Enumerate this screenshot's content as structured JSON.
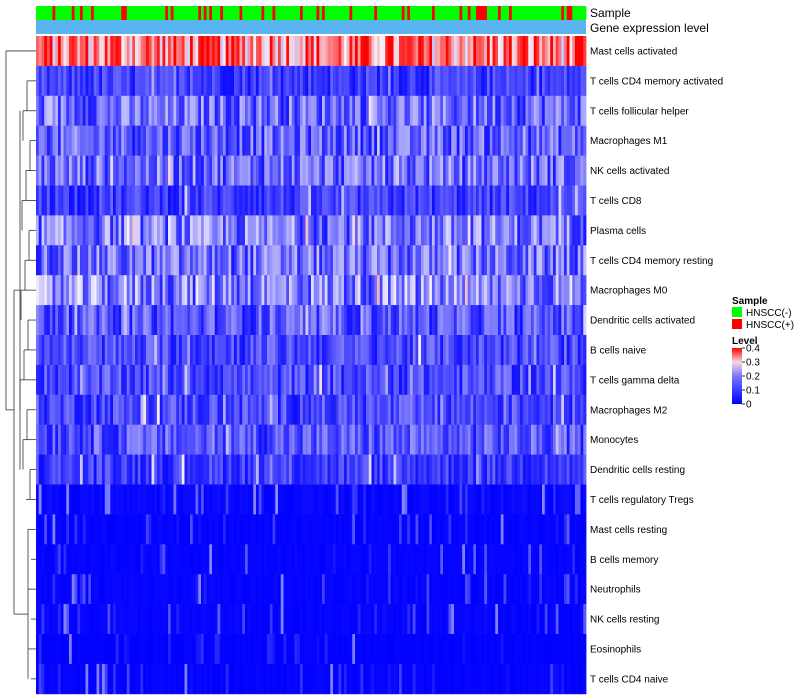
{
  "chart_data": {
    "type": "heatmap",
    "title": "",
    "annotation_rows": [
      "Sample",
      "Gene expression level"
    ],
    "rows": [
      "Mast cells activated",
      "T cells CD4 memory activated",
      "T cells follicular helper",
      "Macrophages M1",
      "NK cells activated",
      "T cells CD8",
      "Plasma cells",
      "T cells CD4 memory resting",
      "Macrophages M0",
      "Dendritic cells activated",
      "B cells naive",
      "T cells gamma delta",
      "Macrophages M2",
      "Monocytes",
      "Dendritic cells resting",
      "T cells regulatory  Tregs",
      "Mast cells resting",
      "B cells memory",
      "Neutrophils",
      "NK cells resting",
      "Eosinophils",
      "T cells CD4 naive"
    ],
    "n_samples": 200,
    "row_mean_level": [
      0.3,
      0.05,
      0.09,
      0.08,
      0.09,
      0.05,
      0.1,
      0.09,
      0.11,
      0.07,
      0.06,
      0.06,
      0.06,
      0.07,
      0.05,
      0.03,
      0.02,
      0.02,
      0.02,
      0.02,
      0.01,
      0.015
    ],
    "level_range": [
      0,
      0.4
    ],
    "value_description": "Each cell shows the estimated fraction (level) of an immune cell type in one sample; individual cell values are not readable from the image.",
    "colors": {
      "low": "#0000ff",
      "mid": "#f5f0fa",
      "high": "#ff0000",
      "sample_neg": "#00ff00",
      "sample_pos": "#ff0000",
      "gene_expr_bar": "#5ab4f0"
    },
    "legend": {
      "sample": {
        "title": "Sample",
        "entries": [
          {
            "label": "HNSCC(-)",
            "color": "#00ff00"
          },
          {
            "label": "HNSCC(+)",
            "color": "#ff0000"
          }
        ]
      },
      "level": {
        "title": "Level",
        "ticks": [
          "0.4",
          "0.3",
          "0.2",
          "0.1",
          "0"
        ],
        "tick_values": [
          0.4,
          0.3,
          0.2,
          0.1,
          0
        ]
      }
    },
    "row_dendrogram": true
  }
}
